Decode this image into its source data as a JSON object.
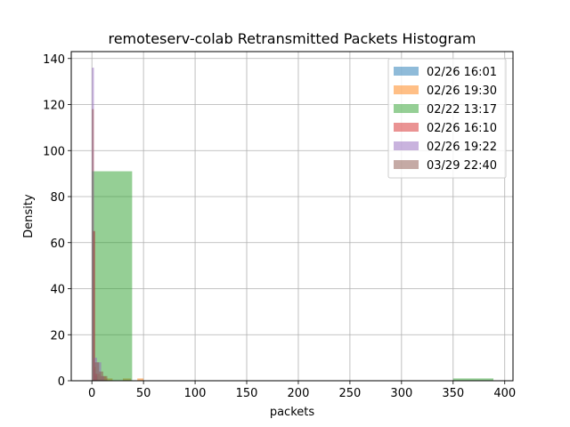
{
  "chart_data": {
    "type": "histogram",
    "title": "remoteserv-colab Retransmitted Packets Histogram",
    "xlabel": "packets",
    "ylabel": "Density",
    "xlim": [
      -20,
      408
    ],
    "ylim": [
      0,
      143
    ],
    "xticks": [
      0,
      50,
      100,
      150,
      200,
      250,
      300,
      350,
      400
    ],
    "yticks": [
      0,
      20,
      40,
      60,
      80,
      100,
      120,
      140
    ],
    "grid": true,
    "legend_position": "top-right",
    "series": [
      {
        "name": "02/26 16:01",
        "color": "#1f77b4",
        "bins": [
          {
            "x0": 0,
            "x1": 1.5,
            "y": 118
          },
          {
            "x0": 1.5,
            "x1": 3,
            "y": 5
          },
          {
            "x0": 3,
            "x1": 6,
            "y": 2
          }
        ]
      },
      {
        "name": "02/26 19:30",
        "color": "#ff7f0e",
        "bins": [
          {
            "x0": 0,
            "x1": 2,
            "y": 118
          },
          {
            "x0": 2,
            "x1": 4,
            "y": 6
          },
          {
            "x0": 4,
            "x1": 8,
            "y": 3
          },
          {
            "x0": 8,
            "x1": 14,
            "y": 2
          },
          {
            "x0": 14,
            "x1": 20,
            "y": 1
          },
          {
            "x0": 30,
            "x1": 38,
            "y": 1
          },
          {
            "x0": 44,
            "x1": 50,
            "y": 1
          }
        ]
      },
      {
        "name": "02/22 13:17",
        "color": "#2ca02c",
        "bins": [
          {
            "x0": 0,
            "x1": 39,
            "y": 91
          },
          {
            "x0": 350,
            "x1": 389,
            "y": 1
          }
        ]
      },
      {
        "name": "02/26 16:10",
        "color": "#d62728",
        "bins": [
          {
            "x0": 1,
            "x1": 3,
            "y": 65
          },
          {
            "x0": 3,
            "x1": 5,
            "y": 3
          }
        ]
      },
      {
        "name": "02/26 19:22",
        "color": "#9467bd",
        "bins": [
          {
            "x0": 0,
            "x1": 2,
            "y": 136
          },
          {
            "x0": 2,
            "x1": 5,
            "y": 10
          },
          {
            "x0": 5,
            "x1": 9,
            "y": 8
          },
          {
            "x0": 9,
            "x1": 12,
            "y": 2
          }
        ]
      },
      {
        "name": "03/29 22:40",
        "color": "#8c564b",
        "bins": [
          {
            "x0": 1,
            "x1": 3,
            "y": 65
          },
          {
            "x0": 3,
            "x1": 7,
            "y": 8
          },
          {
            "x0": 7,
            "x1": 11,
            "y": 4
          },
          {
            "x0": 11,
            "x1": 15,
            "y": 2
          }
        ]
      }
    ]
  }
}
